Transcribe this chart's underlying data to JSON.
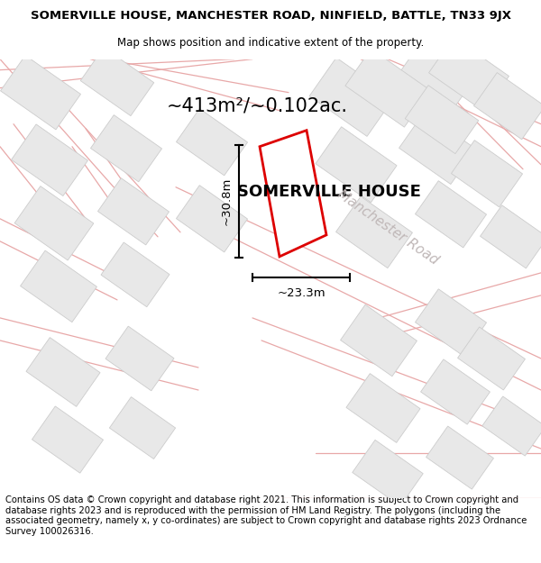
{
  "title": "SOMERVILLE HOUSE, MANCHESTER ROAD, NINFIELD, BATTLE, TN33 9JX",
  "subtitle": "Map shows position and indicative extent of the property.",
  "area_label": "~413m²/~0.102ac.",
  "property_label": "SOMERVILLE HOUSE",
  "dim_width": "~23.3m",
  "dim_height": "~30.8m",
  "road_label": "Manchester Road",
  "footer": "Contains OS data © Crown copyright and database right 2021. This information is subject to Crown copyright and database rights 2023 and is reproduced with the permission of HM Land Registry. The polygons (including the associated geometry, namely x, y co-ordinates) are subject to Crown copyright and database rights 2023 Ordnance Survey 100026316.",
  "map_bg": "#ffffff",
  "building_fill": "#e8e8e8",
  "building_edge": "#cccccc",
  "road_line_color": "#e8a8a8",
  "plot_outline_color": "#dd0000",
  "plot_fill": "#ffffff",
  "dim_line_color": "#111111",
  "road_text_color": "#c0b8b8",
  "title_fontsize": 9.5,
  "subtitle_fontsize": 8.5,
  "footer_fontsize": 7.2,
  "area_fontsize": 15,
  "prop_label_fontsize": 13,
  "road_label_fontsize": 11,
  "dim_fontsize": 9.5
}
